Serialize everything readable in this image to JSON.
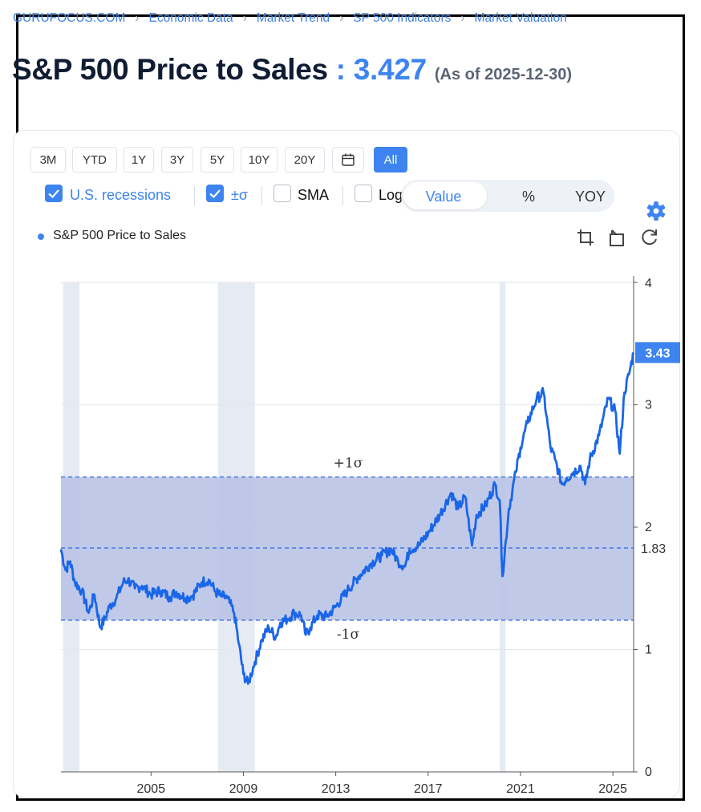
{
  "breadcrumb": [
    "GURUFOCUS.COM",
    "Economic Data",
    "Market Trend",
    "SP 500 Indicators",
    "Market Valuation"
  ],
  "title": {
    "name": "S&P 500 Price to Sales",
    "sep": " : ",
    "value": "3.427",
    "asof": "(As of 2025-12-30)"
  },
  "ranges": [
    "3M",
    "YTD",
    "1Y",
    "3Y",
    "5Y",
    "10Y",
    "20Y",
    "All"
  ],
  "active_range": "All",
  "options": {
    "recessions": "U.S. recessions",
    "sigma": "±σ",
    "sma": "SMA",
    "log": "Log"
  },
  "modes": [
    "Value",
    "%",
    "YOY"
  ],
  "icons": [
    "calendar-icon",
    "gear-icon",
    "zoom-in-icon",
    "zoom-out-icon",
    "reset-icon",
    "checkmark-icon"
  ],
  "colors": {
    "accent": "#3d84f0",
    "line": "#1a66e8",
    "band": "#b9c3e6",
    "recession": "#e6ebf3"
  },
  "chart_data": {
    "type": "line",
    "title": "S&P 500 Price to Sales",
    "legend": [
      "S&P 500 Price to Sales"
    ],
    "x_ticks": [
      "2005",
      "2009",
      "2013",
      "2017",
      "2021",
      "2025"
    ],
    "y_ticks": [
      "0",
      "1",
      "2",
      "3",
      "4"
    ],
    "ylim": [
      0,
      4
    ],
    "xlim": [
      2001.1,
      2025.9
    ],
    "recessions": [
      [
        2001.2,
        2001.9
      ],
      [
        2007.9,
        2009.5
      ],
      [
        2020.1,
        2020.35
      ]
    ],
    "mean": 1.83,
    "mean_label": "1.83",
    "plus_sigma": 2.41,
    "minus_sigma": 1.24,
    "plus_sigma_label": "+1σ",
    "minus_sigma_label": "-1σ",
    "last_value_label": "3.43",
    "series": [
      {
        "name": "S&P 500 Price to Sales",
        "x": [
          2001.1,
          2001.3,
          2001.5,
          2001.7,
          2002.0,
          2002.3,
          2002.55,
          2002.8,
          2003.0,
          2003.2,
          2003.5,
          2003.8,
          2004.0,
          2004.3,
          2004.6,
          2005.0,
          2005.4,
          2005.8,
          2006.1,
          2006.5,
          2006.8,
          2007.2,
          2007.5,
          2007.8,
          2008.0,
          2008.3,
          2008.6,
          2008.8,
          2009.0,
          2009.2,
          2009.5,
          2009.8,
          2010.1,
          2010.4,
          2010.6,
          2010.9,
          2011.2,
          2011.5,
          2011.7,
          2011.9,
          2012.2,
          2012.6,
          2013.0,
          2013.5,
          2014.0,
          2014.5,
          2015.0,
          2015.4,
          2015.7,
          2016.0,
          2016.2,
          2016.6,
          2017.0,
          2017.5,
          2018.0,
          2018.3,
          2018.6,
          2018.9,
          2019.1,
          2019.5,
          2019.9,
          2020.1,
          2020.22,
          2020.5,
          2020.8,
          2021.0,
          2021.3,
          2021.7,
          2022.0,
          2022.3,
          2022.5,
          2022.8,
          2023.0,
          2023.3,
          2023.6,
          2023.8,
          2024.0,
          2024.4,
          2024.8,
          2025.1,
          2025.3,
          2025.5,
          2025.7,
          2025.9
        ],
        "values": [
          1.82,
          1.65,
          1.72,
          1.55,
          1.48,
          1.3,
          1.45,
          1.18,
          1.25,
          1.35,
          1.42,
          1.55,
          1.57,
          1.5,
          1.52,
          1.45,
          1.48,
          1.43,
          1.47,
          1.42,
          1.44,
          1.55,
          1.57,
          1.47,
          1.44,
          1.42,
          1.3,
          1.05,
          0.8,
          0.72,
          0.9,
          1.08,
          1.18,
          1.1,
          1.22,
          1.25,
          1.3,
          1.28,
          1.12,
          1.18,
          1.28,
          1.27,
          1.35,
          1.48,
          1.6,
          1.7,
          1.77,
          1.82,
          1.72,
          1.68,
          1.82,
          1.85,
          1.95,
          2.1,
          2.28,
          2.15,
          2.25,
          1.85,
          2.1,
          2.18,
          2.35,
          2.22,
          1.6,
          2.15,
          2.45,
          2.65,
          2.85,
          3.05,
          3.1,
          2.65,
          2.55,
          2.35,
          2.4,
          2.45,
          2.5,
          2.35,
          2.55,
          2.75,
          3.05,
          2.95,
          2.6,
          3.1,
          3.25,
          3.427
        ]
      }
    ]
  }
}
